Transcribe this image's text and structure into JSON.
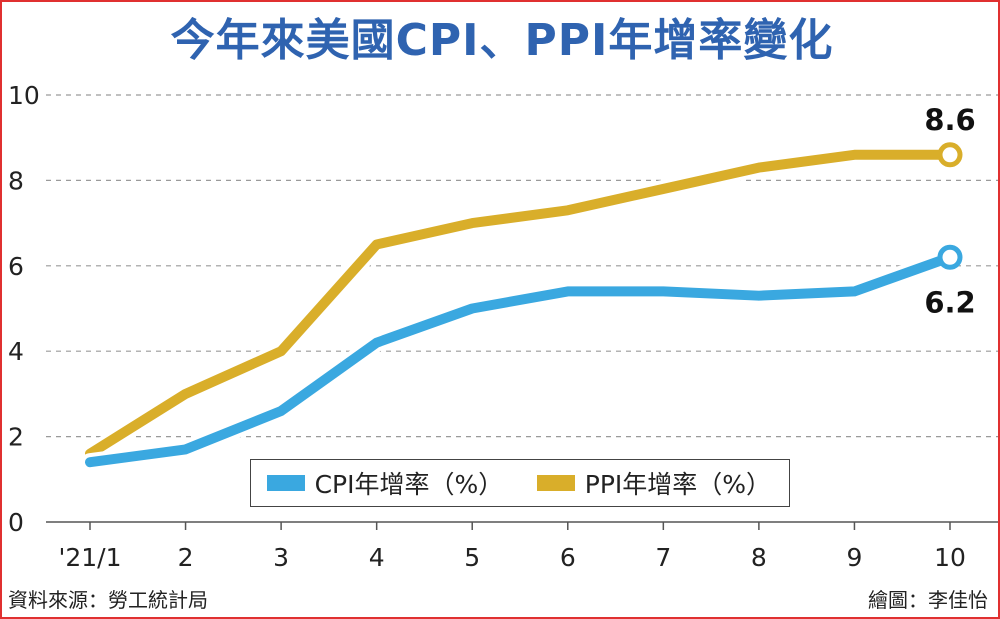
{
  "title": "今年來美國CPI、PPI年增率變化",
  "source": "資料來源：勞工統計局",
  "credit": "繪圖：李佳怡",
  "colors": {
    "cpi": "#3aa8e0",
    "ppi": "#d9ae2a",
    "title": "#2f63b0",
    "frame": "#e03030",
    "grid": "#9a9a9a"
  },
  "chart_data": {
    "type": "line",
    "title": "今年來美國CPI、PPI年增率變化",
    "categories": [
      "'21/1",
      "2",
      "3",
      "4",
      "5",
      "6",
      "7",
      "8",
      "9",
      "10"
    ],
    "ylim": [
      0,
      10
    ],
    "yticks": [
      "0",
      "2",
      "4",
      "6",
      "8",
      "10"
    ],
    "grid": true,
    "legend_position": "bottom-center",
    "series": [
      {
        "name": "CPI年增率（%）",
        "values": [
          1.4,
          1.7,
          2.6,
          4.2,
          5.0,
          5.4,
          5.4,
          5.3,
          5.4,
          6.2
        ]
      },
      {
        "name": "PPI年增率（%）",
        "values": [
          1.6,
          3.0,
          4.0,
          6.5,
          7.0,
          7.3,
          7.8,
          8.3,
          8.6,
          8.6
        ]
      }
    ],
    "annotations": [
      {
        "series": "PPI年增率（%）",
        "category": "10",
        "text": "8.6"
      },
      {
        "series": "CPI年增率（%）",
        "category": "10",
        "text": "6.2"
      }
    ]
  }
}
